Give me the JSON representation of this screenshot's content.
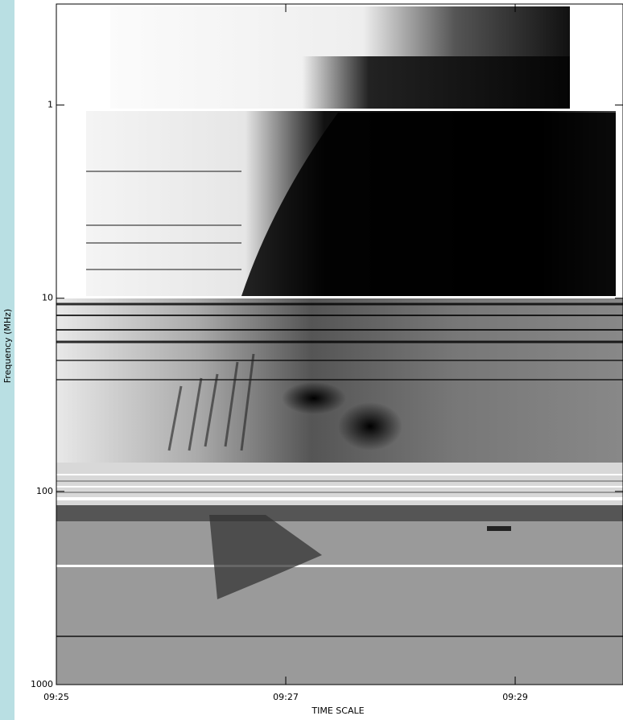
{
  "chart_data": {
    "type": "spectrogram",
    "xlabel": "TIME SCALE",
    "ylabel": "Frequency (MHz)",
    "xlim": [
      25,
      29.94
    ],
    "xticks": [
      {
        "value": 25,
        "label": "09:25"
      },
      {
        "value": 27,
        "label": "09:27"
      },
      {
        "value": 29,
        "label": "09:29"
      }
    ],
    "ylim": [
      0.3,
      1000
    ],
    "yticks": [
      1,
      10,
      100,
      1000
    ],
    "log_y": true,
    "y_inverted": true
  }
}
